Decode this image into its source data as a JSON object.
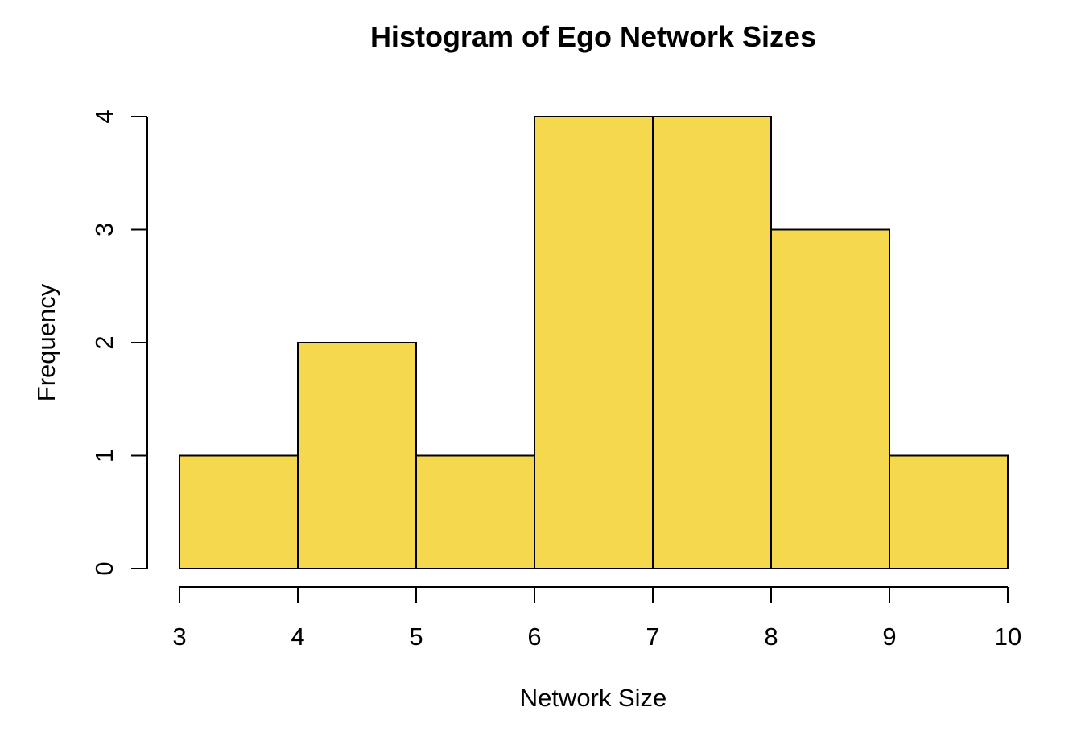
{
  "chart_data": {
    "type": "bar",
    "subtype": "histogram",
    "title": "Histogram of Ego Network Sizes",
    "xlabel": "Network Size",
    "ylabel": "Frequency",
    "bin_edges": [
      3,
      4,
      5,
      6,
      7,
      8,
      9,
      10
    ],
    "counts": [
      1,
      2,
      1,
      4,
      4,
      3,
      1
    ],
    "x_ticks": [
      3,
      4,
      5,
      6,
      7,
      8,
      9,
      10
    ],
    "y_ticks": [
      0,
      1,
      2,
      3,
      4
    ],
    "xlim": [
      3,
      10
    ],
    "ylim": [
      0,
      4
    ],
    "grid": "off",
    "legend": "none",
    "colors": {
      "bar_fill": "#F6D84F",
      "bar_border": "#000000",
      "axis": "#000000",
      "text": "#000000",
      "background": "#FFFFFF"
    }
  }
}
